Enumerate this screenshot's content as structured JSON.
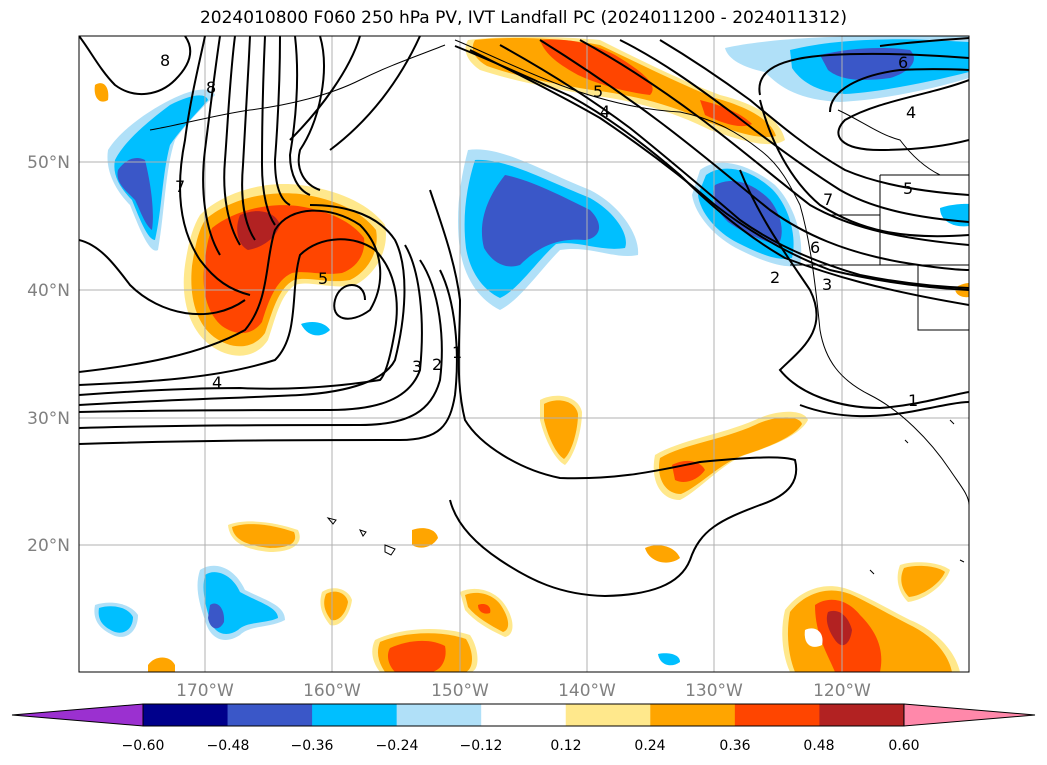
{
  "title": "2024010800 F060 250 hPa PV, IVT Landfall PC (2024011200 - 2024011312)",
  "map": {
    "lat_labels": [
      "50°N",
      "40°N",
      "30°N",
      "20°N"
    ],
    "lon_labels": [
      "170°W",
      "160°W",
      "150°W",
      "140°W",
      "130°W",
      "120°W"
    ],
    "contour_labels": [
      "8",
      "8",
      "7",
      "5",
      "4",
      "3",
      "2",
      "1",
      "5",
      "4",
      "7",
      "6",
      "2",
      "3",
      "5",
      "4",
      "6",
      "1"
    ],
    "grid": true
  },
  "colorbar": {
    "ticks": [
      "−0.60",
      "−0.48",
      "−0.36",
      "−0.24",
      "−0.12",
      "0.12",
      "0.24",
      "0.36",
      "0.48",
      "0.60"
    ],
    "colors": [
      "#9b30d0",
      "#00008b",
      "#3a57c8",
      "#00bfff",
      "#b0e0f8",
      "#ffffff",
      "#ffe88c",
      "#ffa500",
      "#ff4500",
      "#b22222",
      "#ff88aa"
    ],
    "extend": "both"
  },
  "colors": {
    "neg_light": "#b0e0f8",
    "neg_mid": "#00bfff",
    "neg_dark": "#3a57c8",
    "pos_light": "#ffe88c",
    "pos_mid": "#ffa500",
    "pos_strong": "#ff4500",
    "pos_dark": "#b22222",
    "grid": "#b0b0b0"
  }
}
